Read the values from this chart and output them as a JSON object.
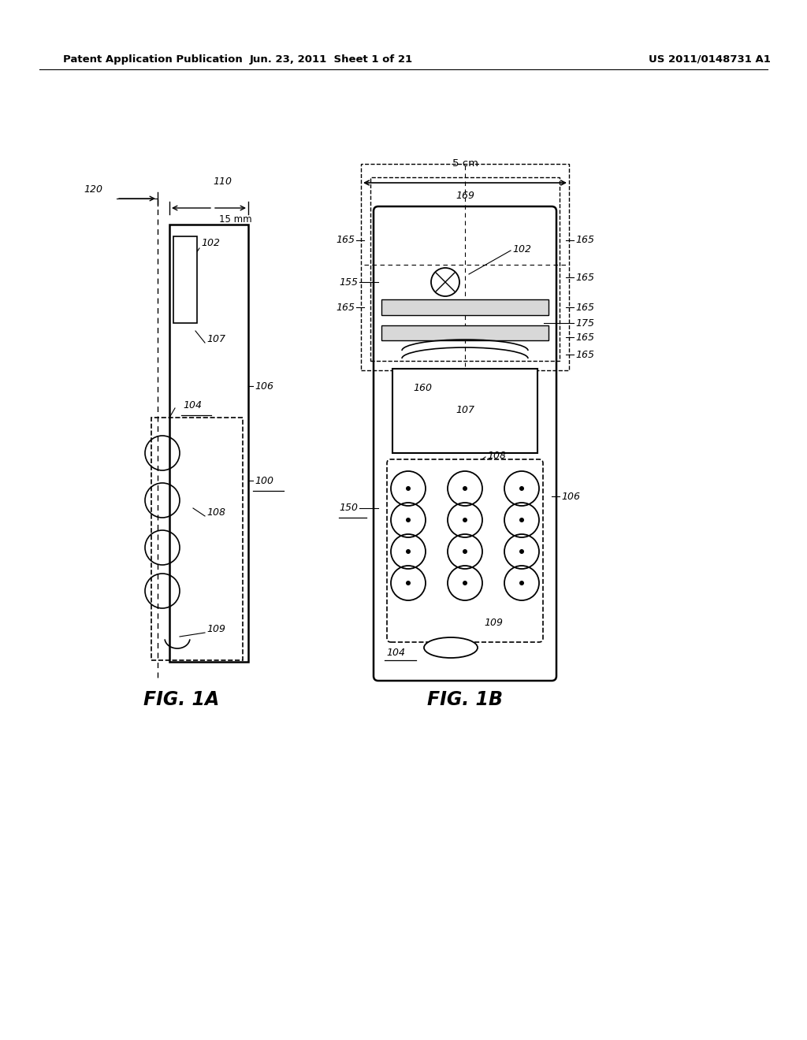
{
  "bg_color": "#ffffff",
  "header_left": "Patent Application Publication",
  "header_mid": "Jun. 23, 2011  Sheet 1 of 21",
  "header_right": "US 2011/0148731 A1",
  "fig1a_label": "FIG. 1A",
  "fig1b_label": "FIG. 1B",
  "fig_width": 10.24,
  "fig_height": 13.2,
  "dpi": 100
}
